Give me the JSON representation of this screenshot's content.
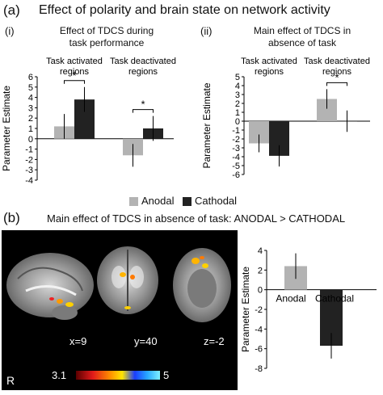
{
  "panel_a": {
    "label": "(a)",
    "title": "Effect of polarity and brain state on network activity",
    "sub_i": {
      "label": "(i)",
      "title_line1": "Effect of TDCS during",
      "title_line2": "task performance"
    },
    "sub_ii": {
      "label": "(ii)",
      "title_line1": "Main effect of TDCS in",
      "title_line2": "absence of task"
    },
    "legend": {
      "anodal": "Anodal",
      "cathodal": "Cathodal"
    }
  },
  "panel_b": {
    "label": "(b)",
    "title": "Main effect of TDCS in absence of task: ANODAL > CATHODAL",
    "slice_labels": [
      "x=9",
      "y=40",
      "z=-2"
    ],
    "side_label": "R",
    "colorbar_min": "3.1",
    "colorbar_max": "5"
  },
  "colors": {
    "anodal": "#b3b3b3",
    "cathodal": "#222222",
    "sig_marker": "*"
  },
  "chart_data": [
    {
      "type": "bar",
      "title": "Effect of TDCS during task performance",
      "ylabel": "Parameter Estimate",
      "ylim": [
        -4,
        6
      ],
      "yticks": [
        "6",
        "5",
        "4",
        "3",
        "2",
        "1",
        "0",
        "-1",
        "-2",
        "-3",
        "-4"
      ],
      "categories": [
        "Task activated regions",
        "Task deactivated regions"
      ],
      "category_lines": [
        [
          "Task activated",
          "regions"
        ],
        [
          "Task deactivated",
          "regions"
        ]
      ],
      "series": [
        {
          "name": "Anodal",
          "values": [
            1.2,
            -1.6
          ],
          "errors": [
            1.2,
            1.1
          ]
        },
        {
          "name": "Cathodal",
          "values": [
            3.8,
            1.0
          ],
          "errors": [
            1.2,
            1.2
          ]
        }
      ],
      "significance": [
        "*",
        "*"
      ]
    },
    {
      "type": "bar",
      "title": "Main effect of TDCS in absence of task",
      "ylabel": "Parameter Estimate",
      "ylim": [
        -6,
        5
      ],
      "yticks": [
        "5",
        "4",
        "3",
        "2",
        "1",
        "0",
        "-1",
        "-2",
        "-3",
        "-4",
        "-5",
        "-6"
      ],
      "categories": [
        "Task activated regions",
        "Task deactivated regions"
      ],
      "category_lines": [
        [
          "Task activated",
          "regions"
        ],
        [
          "Task deactivated",
          "regions"
        ]
      ],
      "series": [
        {
          "name": "Anodal",
          "values": [
            -2.5,
            2.5
          ],
          "errors": [
            1.0,
            1.1
          ]
        },
        {
          "name": "Cathodal",
          "values": [
            -3.9,
            0.0
          ],
          "errors": [
            1.2,
            1.2
          ]
        }
      ],
      "significance": [
        "",
        "*"
      ]
    },
    {
      "type": "bar",
      "ylabel": "Parameter Estimate",
      "ylim": [
        -8,
        4
      ],
      "yticks": [
        "4",
        "2",
        "0",
        "-2",
        "-4",
        "-6",
        "-8"
      ],
      "categories": [
        "Anodal",
        "Cathodal"
      ],
      "values": [
        2.4,
        -5.7
      ],
      "errors": [
        1.3,
        1.3
      ],
      "bar_colors": [
        "#b3b3b3",
        "#222222"
      ]
    }
  ]
}
